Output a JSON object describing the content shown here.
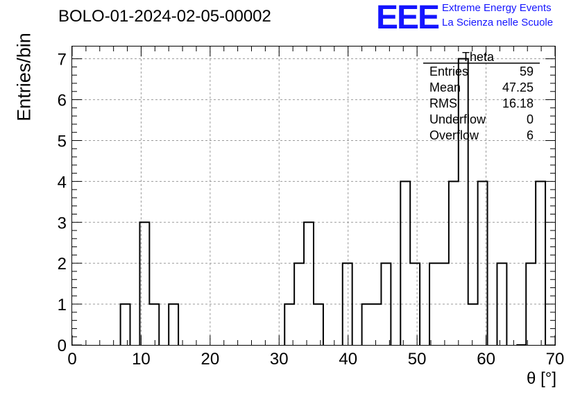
{
  "header": {
    "title": "BOLO-01-2024-02-05-00002",
    "logo_text": "EEE",
    "logo_line1": "Extreme Energy Events",
    "logo_line2": "La Scienza nelle Scuole",
    "logo_color": "#1515ff"
  },
  "chart_data": {
    "type": "bar",
    "style": "step histogram",
    "xlabel": "θ [°]",
    "ylabel": "Entries/bin",
    "xlim": [
      0,
      70
    ],
    "ylim": [
      0,
      7.3
    ],
    "grid": true,
    "grid_style": "dashed",
    "bin_width": 1.4,
    "x_ticks": [
      "0",
      "10",
      "20",
      "30",
      "40",
      "50",
      "60",
      "70"
    ],
    "y_ticks": [
      "0",
      "1",
      "2",
      "3",
      "4",
      "5",
      "6",
      "7"
    ],
    "bin_low_edges": [
      7.0,
      9.8,
      11.2,
      14.0,
      30.8,
      32.2,
      33.6,
      35.0,
      39.2,
      42.0,
      43.4,
      44.8,
      47.6,
      49.0,
      51.8,
      53.2,
      54.6,
      56.0,
      57.4,
      58.8,
      61.6,
      64.4,
      65.8,
      67.2
    ],
    "values": [
      1,
      3,
      1,
      1,
      1,
      2,
      3,
      1,
      2,
      1,
      1,
      2,
      4,
      2,
      2,
      2,
      4,
      7,
      1,
      4,
      2,
      0,
      2,
      4
    ],
    "stats_box": {
      "title": "Theta",
      "position": "top-right",
      "rows": [
        {
          "name": "Entries",
          "value": "59"
        },
        {
          "name": "Mean",
          "value": "47.25"
        },
        {
          "name": "RMS",
          "value": "16.18"
        },
        {
          "name": "Underflow",
          "value": "0"
        },
        {
          "name": "Overflow",
          "value": "6"
        }
      ]
    }
  }
}
